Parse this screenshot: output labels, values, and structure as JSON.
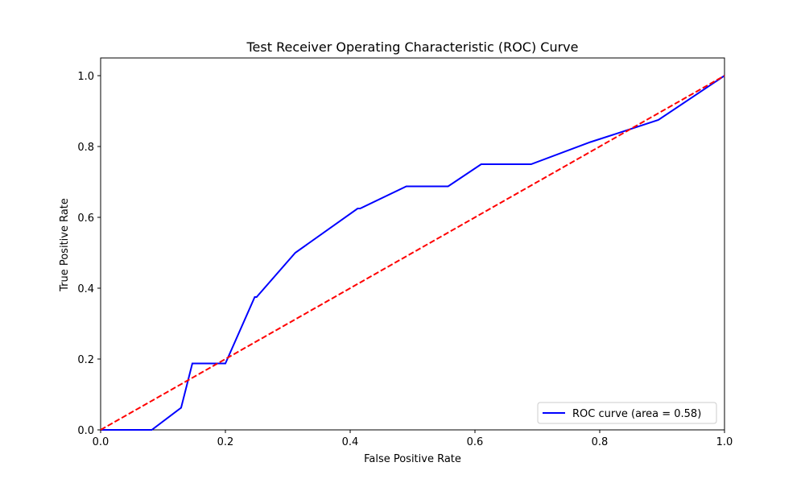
{
  "chart_data": {
    "type": "line",
    "title": "Test Receiver Operating Characteristic (ROC) Curve",
    "xlabel": "False Positive Rate",
    "ylabel": "True Positive Rate",
    "xlim": [
      0.0,
      1.0
    ],
    "ylim": [
      0.0,
      1.05
    ],
    "x_ticks": [
      0.0,
      0.2,
      0.4,
      0.6,
      0.8,
      1.0
    ],
    "y_ticks": [
      0.0,
      0.2,
      0.4,
      0.6,
      0.8,
      1.0
    ],
    "x_tick_labels": [
      "0.0",
      "0.2",
      "0.4",
      "0.6",
      "0.8",
      "1.0"
    ],
    "y_tick_labels": [
      "0.0",
      "0.2",
      "0.4",
      "0.6",
      "0.8",
      "1.0"
    ],
    "grid": false,
    "legend_position": "lower-right",
    "series": [
      {
        "name": "ROC curve (area = 0.58)",
        "color": "#0000ff",
        "style": "solid",
        "x": [
          0.0,
          0.082,
          0.129,
          0.147,
          0.2,
          0.247,
          0.25,
          0.312,
          0.412,
          0.416,
          0.49,
          0.557,
          0.61,
          0.69,
          0.785,
          0.84,
          0.894,
          1.0
        ],
        "y": [
          0.0,
          0.0,
          0.0625,
          0.1875,
          0.1875,
          0.375,
          0.375,
          0.5,
          0.625,
          0.625,
          0.6875,
          0.6875,
          0.75,
          0.75,
          0.8125,
          0.8438,
          0.875,
          1.0
        ]
      },
      {
        "color": "#ff0000",
        "style": "dashed",
        "x": [
          0.0,
          1.0
        ],
        "y": [
          0.0,
          1.0
        ]
      }
    ]
  }
}
